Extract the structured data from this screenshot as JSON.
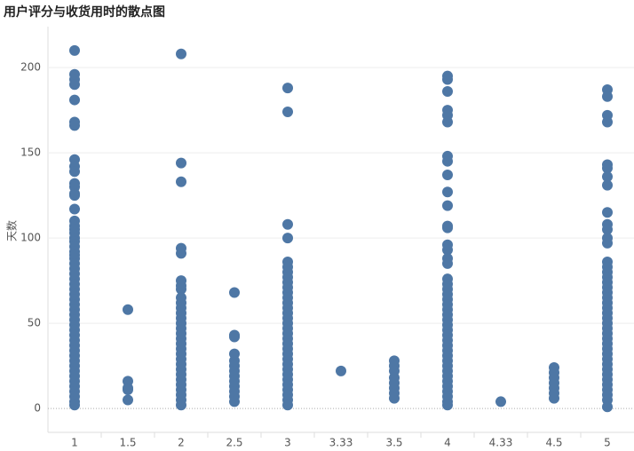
{
  "chart_data": {
    "type": "scatter",
    "title": "用户评分与收货用时的散点图",
    "y_label": "天数",
    "categories": [
      "1",
      "1.5",
      "2",
      "2.5",
      "3",
      "3.33",
      "3.5",
      "4",
      "4.33",
      "4.5",
      "5"
    ],
    "values": [
      [
        210,
        196,
        193,
        190,
        181,
        168,
        166,
        146,
        142,
        139,
        132,
        130,
        126,
        125,
        117,
        110,
        107,
        105,
        103,
        100,
        98,
        95,
        92,
        90,
        88,
        85,
        82,
        79,
        76,
        73,
        70,
        67,
        64,
        61,
        58,
        55,
        52,
        49,
        46,
        43,
        40,
        37,
        34,
        31,
        28,
        25,
        22,
        19,
        16,
        13,
        10,
        7,
        4,
        2
      ],
      [
        58,
        16,
        12,
        11,
        5
      ],
      [
        208,
        144,
        133,
        94,
        91,
        75,
        72,
        70,
        65,
        62,
        59,
        56,
        53,
        50,
        47,
        44,
        41,
        38,
        35,
        32,
        29,
        26,
        23,
        20,
        17,
        14,
        11,
        8,
        5,
        2
      ],
      [
        68,
        43,
        42,
        32,
        28,
        25,
        22,
        19,
        16,
        13,
        10,
        7,
        4
      ],
      [
        188,
        174,
        108,
        100,
        86,
        83,
        80,
        77,
        74,
        71,
        68,
        65,
        62,
        59,
        56,
        53,
        50,
        47,
        44,
        41,
        38,
        35,
        32,
        29,
        26,
        23,
        20,
        17,
        14,
        11,
        8,
        5,
        2
      ],
      [
        22
      ],
      [
        28,
        25,
        22,
        18,
        15,
        12,
        9,
        6
      ],
      [
        195,
        193,
        186,
        175,
        172,
        168,
        148,
        145,
        137,
        127,
        119,
        107,
        106,
        96,
        93,
        88,
        85,
        76,
        73,
        70,
        67,
        64,
        61,
        58,
        55,
        52,
        49,
        46,
        43,
        40,
        37,
        34,
        31,
        28,
        25,
        22,
        19,
        16,
        13,
        10,
        7,
        4,
        2
      ],
      [
        4
      ],
      [
        24,
        21,
        18,
        15,
        12,
        9,
        6
      ],
      [
        187,
        183,
        172,
        168,
        143,
        141,
        136,
        131,
        115,
        108,
        105,
        100,
        97,
        86,
        83,
        80,
        77,
        74,
        71,
        68,
        65,
        62,
        59,
        56,
        53,
        50,
        47,
        44,
        41,
        38,
        35,
        32,
        29,
        26,
        23,
        20,
        17,
        14,
        11,
        8,
        5,
        1
      ]
    ],
    "color": "#4e77a5",
    "ylim": [
      -14,
      224
    ],
    "yticks": [
      0,
      50,
      100,
      150,
      200
    ],
    "grid": true
  }
}
